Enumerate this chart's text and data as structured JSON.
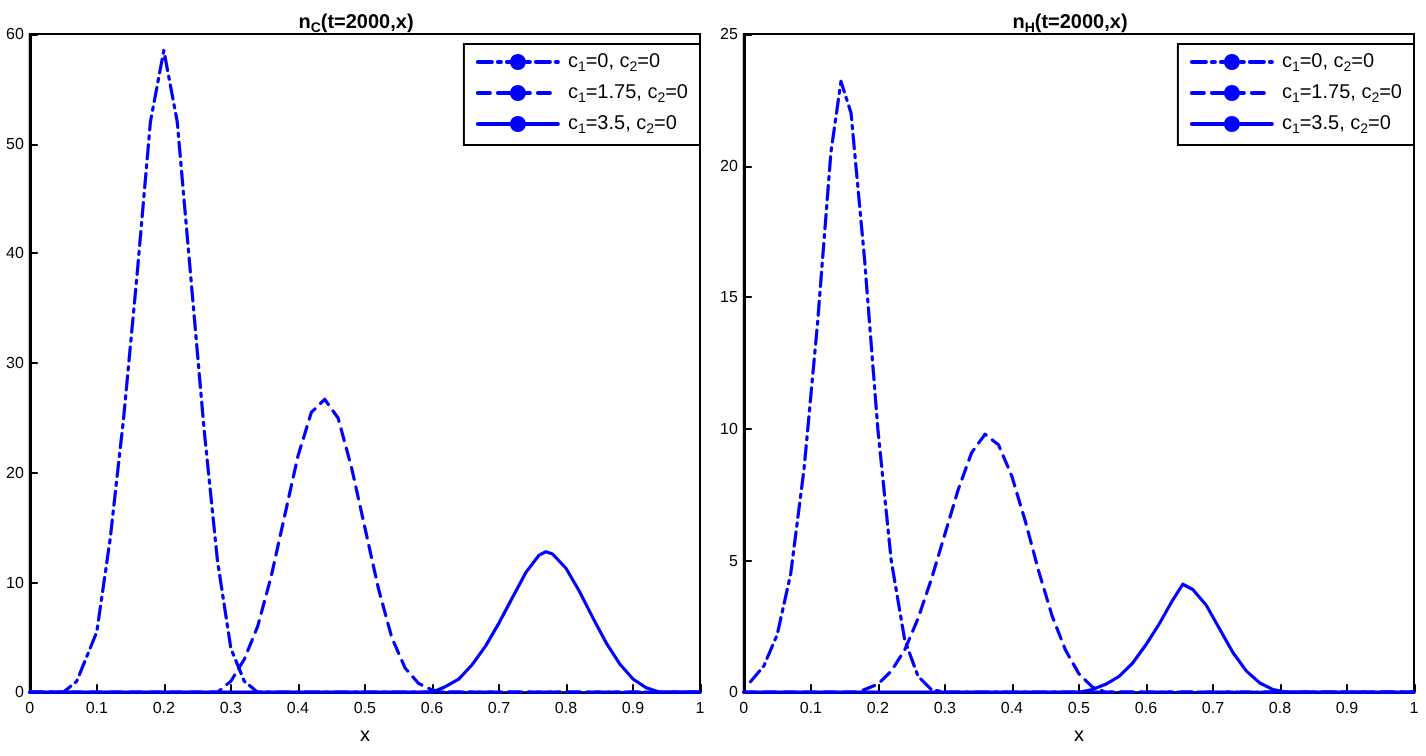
{
  "chart_data": [
    {
      "type": "line",
      "title": "n$_{C}$(t=2000,x)",
      "xlabel": "x",
      "xlim": [
        0,
        1
      ],
      "xticks": [
        0,
        0.1,
        0.2,
        0.3,
        0.4,
        0.5,
        0.6,
        0.7,
        0.8,
        0.9,
        1
      ],
      "ylim": [
        0,
        60
      ],
      "yticks": [
        0,
        10,
        20,
        30,
        40,
        50,
        60
      ],
      "grid": false,
      "legend": "top right",
      "marker": "none",
      "series": [
        {
          "name": "c$_{1}$=0, c$_{2}$=0",
          "color": "#0000ff",
          "line_style": "dashdot",
          "x": [
            0,
            0.05,
            0.07,
            0.1,
            0.12,
            0.14,
            0.16,
            0.18,
            0.2,
            0.22,
            0.24,
            0.26,
            0.28,
            0.3,
            0.32,
            0.34,
            1
          ],
          "values": [
            0,
            0,
            1,
            5.5,
            14,
            25,
            38,
            52,
            58.5,
            52,
            38,
            24,
            12,
            4,
            1,
            0,
            0
          ]
        },
        {
          "name": "c$_{1}$=1.75, c$_{2}$=0",
          "color": "#0000ff",
          "line_style": "dashed",
          "x": [
            0,
            0.28,
            0.3,
            0.32,
            0.34,
            0.36,
            0.38,
            0.4,
            0.42,
            0.44,
            0.46,
            0.48,
            0.5,
            0.52,
            0.54,
            0.56,
            0.58,
            0.6,
            0.62,
            1
          ],
          "values": [
            0,
            0,
            1,
            3,
            6,
            10.5,
            16,
            21.5,
            25.5,
            26.7,
            25,
            20.5,
            15,
            9.5,
            5,
            2.2,
            0.8,
            0.2,
            0,
            0
          ]
        },
        {
          "name": "c$_{1}$=3.5, c$_{2}$=0",
          "color": "#0000ff",
          "line_style": "solid",
          "x": [
            0,
            0.6,
            0.62,
            0.64,
            0.66,
            0.68,
            0.7,
            0.72,
            0.74,
            0.76,
            0.77,
            0.78,
            0.8,
            0.82,
            0.84,
            0.86,
            0.88,
            0.9,
            0.92,
            0.94,
            1
          ],
          "values": [
            0,
            0,
            0.5,
            1.2,
            2.5,
            4.2,
            6.3,
            8.6,
            10.9,
            12.5,
            12.8,
            12.6,
            11.3,
            9.2,
            6.8,
            4.5,
            2.6,
            1.2,
            0.4,
            0,
            0
          ]
        }
      ]
    },
    {
      "type": "line",
      "title": "n$_{H}$(t=2000,x)",
      "xlabel": "x",
      "xlim": [
        0,
        1
      ],
      "xticks": [
        0,
        0.1,
        0.2,
        0.3,
        0.4,
        0.5,
        0.6,
        0.7,
        0.8,
        0.9,
        1
      ],
      "ylim": [
        0,
        25
      ],
      "yticks": [
        0,
        5,
        10,
        15,
        20,
        25
      ],
      "grid": false,
      "legend": "top right",
      "marker": "none",
      "series": [
        {
          "name": "c$_{1}$=0, c$_{2}$=0",
          "color": "#0000ff",
          "line_style": "dashdot",
          "x": [
            0.01,
            0.03,
            0.05,
            0.07,
            0.09,
            0.11,
            0.13,
            0.145,
            0.16,
            0.18,
            0.2,
            0.22,
            0.24,
            0.26,
            0.28,
            0.3,
            1
          ],
          "values": [
            0.4,
            1,
            2.2,
            4.5,
            8.5,
            14,
            20.5,
            23.2,
            22,
            16.5,
            10,
            5,
            2,
            0.6,
            0.1,
            0,
            0
          ]
        },
        {
          "name": "c$_{1}$=1.75, c$_{2}$=0",
          "color": "#0000ff",
          "line_style": "dashed",
          "x": [
            0,
            0.17,
            0.2,
            0.22,
            0.24,
            0.26,
            0.28,
            0.3,
            0.32,
            0.34,
            0.36,
            0.38,
            0.4,
            0.42,
            0.44,
            0.46,
            0.48,
            0.5,
            0.52,
            0.54,
            1
          ],
          "values": [
            0,
            0,
            0.3,
            0.8,
            1.6,
            2.8,
            4.3,
            6,
            7.7,
            9.1,
            9.8,
            9.4,
            8.2,
            6.5,
            4.6,
            2.9,
            1.6,
            0.7,
            0.2,
            0,
            0
          ]
        },
        {
          "name": "c$_{1}$=3.5, c$_{2}$=0",
          "color": "#0000ff",
          "line_style": "solid",
          "x": [
            0,
            0.5,
            0.52,
            0.54,
            0.56,
            0.58,
            0.6,
            0.62,
            0.64,
            0.655,
            0.67,
            0.69,
            0.71,
            0.73,
            0.75,
            0.77,
            0.79,
            0.81,
            1
          ],
          "values": [
            0,
            0,
            0.1,
            0.3,
            0.6,
            1.1,
            1.8,
            2.6,
            3.5,
            4.1,
            3.9,
            3.3,
            2.4,
            1.5,
            0.8,
            0.35,
            0.1,
            0,
            0
          ]
        }
      ]
    }
  ]
}
